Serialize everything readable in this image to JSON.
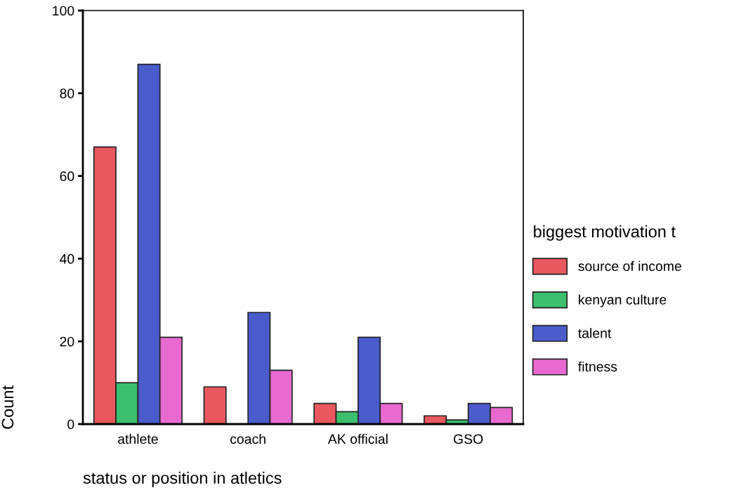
{
  "chart_data": {
    "type": "bar",
    "xlabel": "status or position in atletics",
    "ylabel": "Count",
    "legend_title": "biggest motivation t",
    "categories": [
      "athlete",
      "coach",
      "AK official",
      "GSO"
    ],
    "series": [
      {
        "name": "source of income",
        "color": "#e8585e",
        "values": [
          67,
          9,
          5,
          2
        ]
      },
      {
        "name": "kenyan culture",
        "color": "#3cbf6e",
        "values": [
          10,
          0,
          3,
          1
        ]
      },
      {
        "name": "talent",
        "color": "#4a5ccc",
        "values": [
          87,
          27,
          21,
          5
        ]
      },
      {
        "name": "fitness",
        "color": "#e86ad0",
        "values": [
          21,
          13,
          5,
          4
        ]
      }
    ],
    "ylim": [
      0,
      100
    ],
    "yticks": [
      0,
      20,
      40,
      60,
      80,
      100
    ],
    "grid": false,
    "legend": "right"
  }
}
